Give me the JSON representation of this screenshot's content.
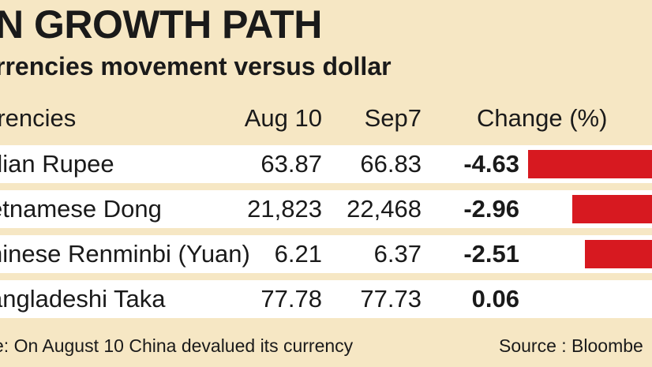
{
  "header": {
    "title": "N GROWTH PATH",
    "subtitle": "rrencies movement versus dollar"
  },
  "table": {
    "columns": [
      "rrencies",
      "Aug 10",
      "Sep7",
      "Change (%)"
    ],
    "rows": [
      {
        "currency": "dian Rupee",
        "aug10": "63.87",
        "sep7": "66.83",
        "change": "-4.63"
      },
      {
        "currency": "etnamese Dong",
        "aug10": "21,823",
        "sep7": "22,468",
        "change": "-2.96"
      },
      {
        "currency": "hinese Renminbi (Yuan)",
        "aug10": "6.21",
        "sep7": "6.37",
        "change": "-2.51"
      },
      {
        "currency": "angladeshi Taka",
        "aug10": "77.78",
        "sep7": "77.73",
        "change": "0.06"
      }
    ]
  },
  "footer": {
    "note": "e: On August 10 China devalued its currency",
    "source": "Source : Bloombe"
  },
  "colors": {
    "background": "#f6e7c4",
    "bar": "#d71920",
    "row": "#ffffff"
  },
  "chart_data": {
    "type": "bar",
    "orientation": "horizontal",
    "categories": [
      "dian Rupee",
      "etnamese Dong",
      "hinese Renminbi (Yuan)",
      "angladeshi Taka"
    ],
    "values": [
      -4.63,
      -2.96,
      -2.51,
      0.06
    ],
    "ylabel": "Change (%)"
  }
}
